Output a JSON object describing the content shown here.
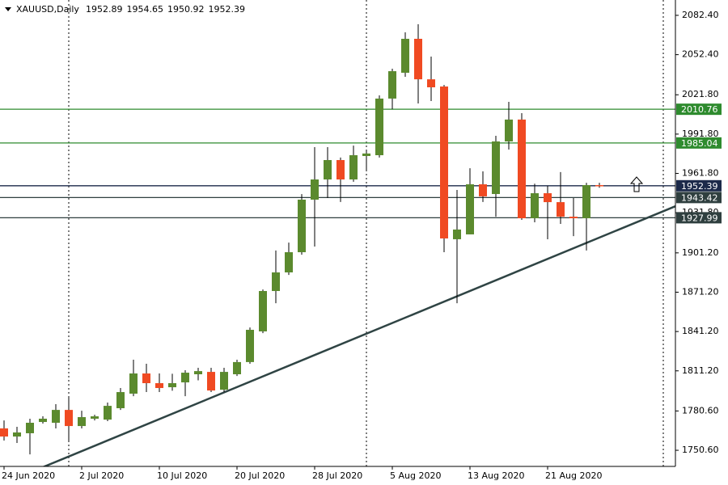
{
  "header": {
    "symbol": "XAUUSD,Daily"
  },
  "chart_data": {
    "type": "candlestick",
    "categories": [
      "24 Jun 2020",
      null,
      null,
      null,
      null,
      null,
      "2 Jul 2020",
      null,
      null,
      null,
      null,
      null,
      "10 Jul 2020",
      null,
      null,
      null,
      null,
      null,
      "20 Jul 2020",
      null,
      null,
      null,
      null,
      null,
      "28 Jul 2020",
      null,
      null,
      null,
      null,
      null,
      "5 Aug 2020",
      null,
      null,
      null,
      null,
      null,
      "13 Aug 2020",
      null,
      null,
      null,
      null,
      null,
      "21 Aug 2020",
      null,
      null,
      null,
      null
    ],
    "open": [
      1767.3,
      1761.1,
      1763.6,
      1772.2,
      1771.6,
      1781.4,
      1769.1,
      1774.7,
      1774.0,
      1782.7,
      1793.8,
      1809.2,
      1801.8,
      1798.7,
      1802.4,
      1808.6,
      1810.4,
      1796.8,
      1808.6,
      1817.9,
      1841.3,
      1872.1,
      1886.3,
      1901.7,
      1941.8,
      1957.2,
      1972.0,
      1957.2,
      1975.1,
      1975.7,
      2018.9,
      2038.6,
      2064.5,
      2033.6,
      2028.1,
      1911.6,
      1915.3,
      1953.5,
      1946.1,
      1986.2,
      2002.9,
      1927.6,
      1946.7,
      1939.9,
      1928.8,
      1927.6,
      1952.89
    ],
    "high": [
      1773.4,
      1768.5,
      1774.7,
      1776.5,
      1785.8,
      1791.9,
      1780.8,
      1777.7,
      1787.0,
      1798.1,
      1819.7,
      1816.6,
      1809.2,
      1809.0,
      1811.7,
      1813.5,
      1813.5,
      1813.5,
      1819.7,
      1844.3,
      1873.3,
      1903.0,
      1909.0,
      1946.0,
      1981.9,
      1981.9,
      1973.9,
      1983.0,
      1980.0,
      2021.3,
      2041.7,
      2069.4,
      2075.6,
      2050.9,
      2029.3,
      1949.2,
      1965.8,
      1963.4,
      1990.5,
      2016.4,
      2007.8,
      1954.0,
      1952.3,
      1962.8,
      1943.0,
      1954.7,
      1954.65
    ],
    "low": [
      1758.0,
      1756.2,
      1747.5,
      1771.0,
      1767.3,
      1758.0,
      1767.3,
      1773.4,
      1772.8,
      1781.4,
      1791.9,
      1795.0,
      1795.0,
      1796.0,
      1791.9,
      1804.0,
      1795.0,
      1795.0,
      1807.3,
      1816.6,
      1840.0,
      1862.8,
      1884.4,
      1899.8,
      1906.0,
      1943.0,
      1940.0,
      1955.4,
      1964.6,
      1973.9,
      2010.8,
      2035.5,
      2015.2,
      2017.0,
      1901.7,
      1862.8,
      1915.3,
      1940.0,
      1928.8,
      1980.0,
      1926.4,
      1924.5,
      1911.6,
      1923.3,
      1914.0,
      1903.0,
      1950.92
    ],
    "close": [
      1761.1,
      1764.2,
      1771.6,
      1774.7,
      1781.4,
      1769.1,
      1775.9,
      1776.5,
      1784.5,
      1795.0,
      1809.2,
      1801.8,
      1798.1,
      1801.8,
      1809.8,
      1811.0,
      1796.2,
      1810.4,
      1817.9,
      1842.5,
      1872.1,
      1886.3,
      1901.7,
      1941.8,
      1957.2,
      1972.0,
      1957.2,
      1975.7,
      1977.0,
      2018.9,
      2039.8,
      2064.5,
      2033.6,
      2027.5,
      1912.2,
      1919.0,
      1953.5,
      1944.3,
      1986.2,
      2002.9,
      1927.6,
      1946.7,
      1939.9,
      1928.8,
      1927.6,
      1952.9,
      1952.39
    ],
    "up_color": "#5b8a2e",
    "down_color": "#f04a22",
    "ylim": [
      1738.3,
      2094.1
    ],
    "yticks": [
      {
        "value": 2082.4,
        "label": "2082.40"
      },
      {
        "value": 2052.4,
        "label": "2052.40"
      },
      {
        "value": 2021.8,
        "label": "2021.80"
      },
      {
        "value": 1991.8,
        "label": "1991.80"
      },
      {
        "value": 1961.8,
        "label": "1961.80"
      },
      {
        "value": 1931.8,
        "label": "1931.80"
      },
      {
        "value": 1901.2,
        "label": "1901.20"
      },
      {
        "value": 1871.2,
        "label": "1871.20"
      },
      {
        "value": 1841.2,
        "label": "1841.20"
      },
      {
        "value": 1811.2,
        "label": "1811.20"
      },
      {
        "value": 1780.6,
        "label": "1780.60"
      },
      {
        "value": 1750.6,
        "label": "1750.60"
      }
    ],
    "levels": [
      {
        "price": 2010.76,
        "color": "#2e8b2e"
      },
      {
        "price": 1985.04,
        "color": "#2e8b2e"
      },
      {
        "price": 1952.39,
        "color": "#1c2a4a"
      },
      {
        "price": 1943.42,
        "color": "#2f3f3f"
      },
      {
        "price": 1927.99,
        "color": "#2f3f3f"
      }
    ],
    "trendline": {
      "x": [
        0,
        51.875
      ],
      "y": [
        1725.5,
        1936.8
      ],
      "color": "#2f4444"
    }
  }
}
